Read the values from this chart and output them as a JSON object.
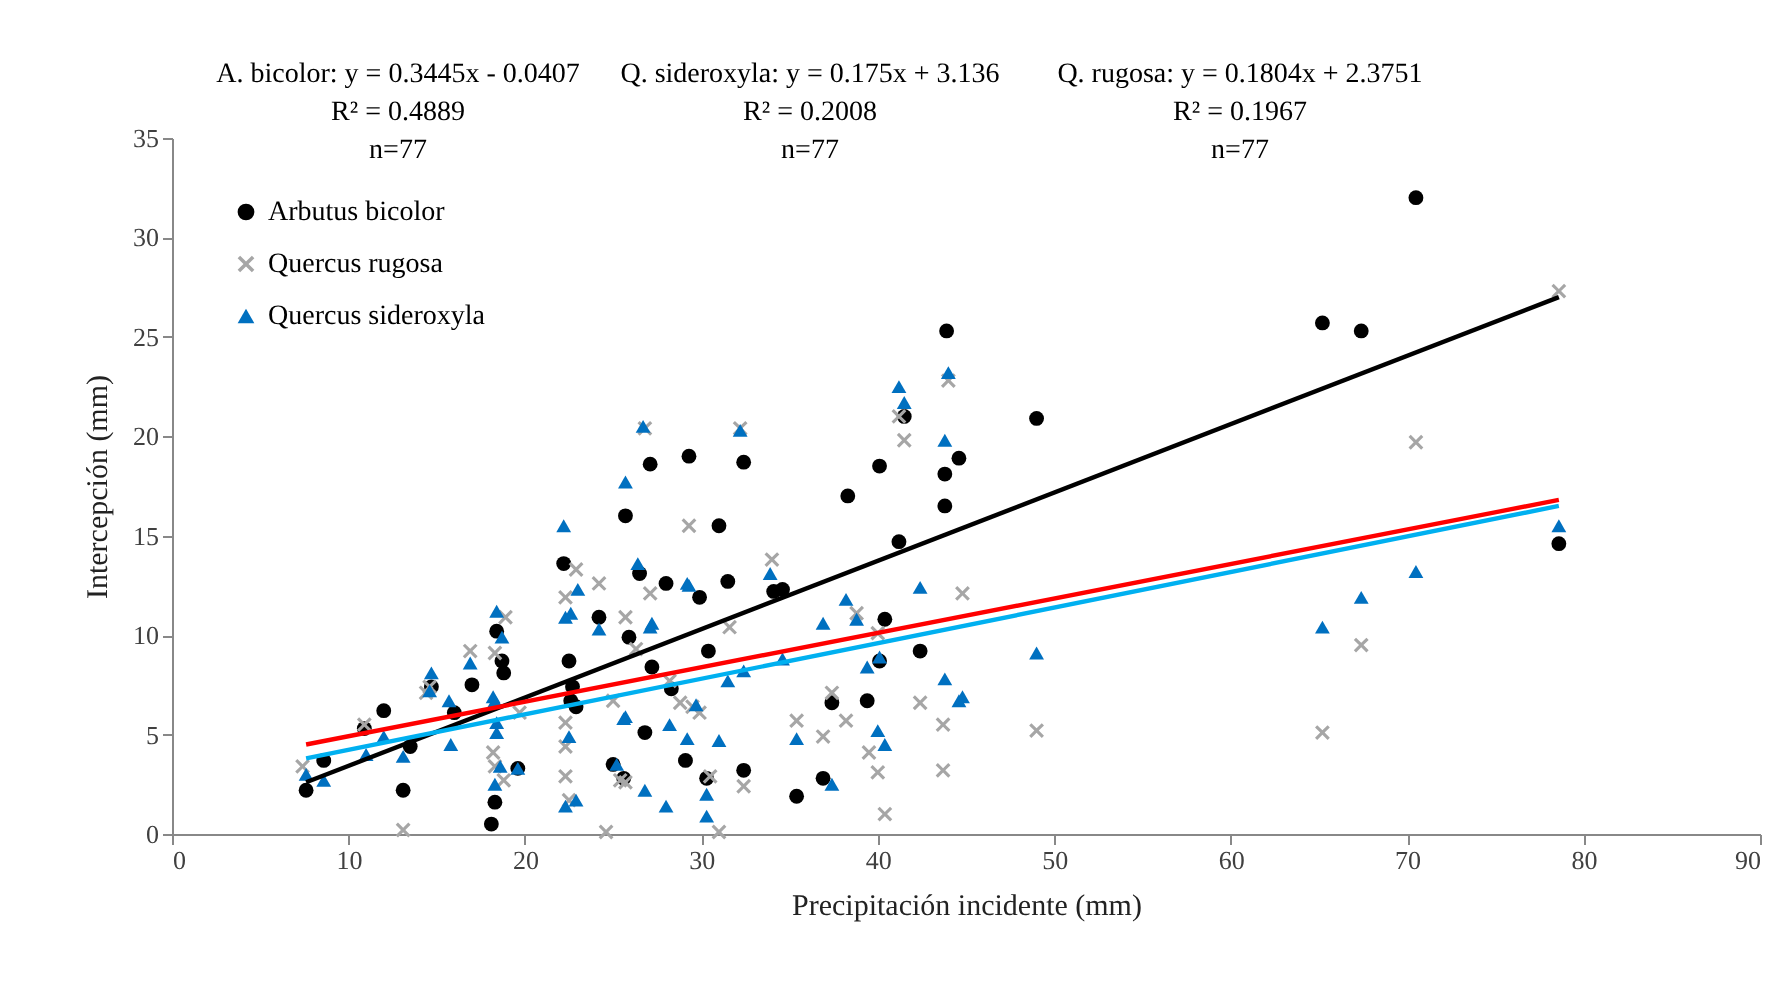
{
  "chart_data": {
    "type": "scatter",
    "xlabel": "Precipitación incidente (mm)",
    "ylabel": "Intercepción (mm)",
    "xlim": [
      0,
      90
    ],
    "xticks": [
      0,
      10,
      20,
      30,
      40,
      50,
      60,
      70,
      80,
      90
    ],
    "ylim": [
      0,
      35
    ],
    "yticks": [
      0,
      5,
      10,
      15,
      20,
      25,
      30,
      35
    ],
    "grid": false,
    "legend": "top left",
    "annotations": [
      "A. bicolor: y = 0.3445x - 0.0407",
      "R² = 0.4889",
      "n=77",
      "Q. sideroxyla: y = 0.175x + 3.136",
      "R² = 0.2008",
      "n=77",
      "Q. rugosa: y = 0.1804x + 2.3751",
      "R² = 0.1967",
      "n=77"
    ],
    "series": [
      {
        "name": "Arbutus bicolor",
        "color": "#000000",
        "marker": "circle",
        "x": [
          7.6,
          8.6,
          10.9,
          12.0,
          13.1,
          13.5,
          14.7,
          16.0,
          17.0,
          18.4,
          18.7,
          18.8,
          18.3,
          18.1,
          19.6,
          22.2,
          22.5,
          22.7,
          22.9,
          22.6,
          24.2,
          25.7,
          25.9,
          26.5,
          27.1,
          27.2,
          28.0,
          29.3,
          29.9,
          30.4,
          31.0,
          31.5,
          32.4,
          29.1,
          30.3,
          32.4,
          26.8,
          25.0,
          25.6,
          28.3,
          43.9,
          41.5,
          40.1,
          38.3,
          43.8,
          43.8,
          41.2,
          44.6,
          40.4,
          42.4,
          39.4,
          37.4,
          36.9,
          35.4,
          34.1,
          34.6,
          49.0,
          40.1,
          65.2,
          67.4,
          70.5,
          78.6
        ],
        "values": [
          2.2,
          3.7,
          5.3,
          6.2,
          2.2,
          4.4,
          7.4,
          6.1,
          7.5,
          10.2,
          8.7,
          8.1,
          1.6,
          0.5,
          3.3,
          13.6,
          8.7,
          7.4,
          6.4,
          6.7,
          10.9,
          16.0,
          9.9,
          13.1,
          18.6,
          8.4,
          12.6,
          19.0,
          11.9,
          9.2,
          15.5,
          12.7,
          18.7,
          3.7,
          2.8,
          3.2,
          5.1,
          3.5,
          2.8,
          7.3,
          25.3,
          21.0,
          18.5,
          17.0,
          18.1,
          16.5,
          14.7,
          18.9,
          10.8,
          9.2,
          6.7,
          6.6,
          2.8,
          1.9,
          12.2,
          12.3,
          20.9,
          8.7,
          25.7,
          25.3,
          32.0,
          14.6
        ]
      },
      {
        "name": "Quercus rugosa",
        "color": "#a6a6a6",
        "marker": "cross",
        "x": [
          7.4,
          10.9,
          13.1,
          14.4,
          14.6,
          16.9,
          18.3,
          18.9,
          18.2,
          18.3,
          18.8,
          19.7,
          22.3,
          22.3,
          22.3,
          22.3,
          22.9,
          24.2,
          25.7,
          27.1,
          29.3,
          31.6,
          25.0,
          26.3,
          28.8,
          29.5,
          25.4,
          22.5,
          24.6,
          31.0,
          32.4,
          30.5,
          41.2,
          41.5,
          44.0,
          34.0,
          32.2,
          26.8,
          38.8,
          37.4,
          38.2,
          40.0,
          39.5,
          40.0,
          40.4,
          36.9,
          35.4,
          42.4,
          43.7,
          43.7,
          28.2,
          29.9,
          25.7,
          44.8,
          49.0,
          65.2,
          67.4,
          70.5,
          78.6
        ],
        "values": [
          3.4,
          5.5,
          0.2,
          7.1,
          7.4,
          9.2,
          9.1,
          10.9,
          4.1,
          3.4,
          2.7,
          6.1,
          11.9,
          5.6,
          4.4,
          2.9,
          13.3,
          12.6,
          10.9,
          12.1,
          15.5,
          10.4,
          6.7,
          9.3,
          6.6,
          6.4,
          2.7,
          1.7,
          0.1,
          0.1,
          2.4,
          2.9,
          21.0,
          19.8,
          22.8,
          13.8,
          20.4,
          20.4,
          11.1,
          7.1,
          5.7,
          10.1,
          4.1,
          3.1,
          1.0,
          4.9,
          5.7,
          6.6,
          5.5,
          3.2,
          7.7,
          6.1,
          2.6,
          12.1,
          5.2,
          5.1,
          9.5,
          19.7,
          27.3
        ]
      },
      {
        "name": "Quercus sideroxyla",
        "color": "#0070c0",
        "marker": "triangle",
        "x": [
          7.6,
          8.6,
          11.0,
          12.0,
          13.1,
          14.7,
          14.6,
          15.7,
          15.8,
          16.9,
          18.4,
          18.7,
          18.3,
          18.4,
          18.6,
          18.3,
          19.6,
          22.2,
          22.3,
          22.3,
          18.2,
          18.4,
          22.6,
          23.0,
          24.2,
          22.5,
          22.9,
          25.7,
          26.4,
          26.7,
          27.1,
          25.2,
          25.7,
          26.8,
          28.0,
          28.2,
          29.2,
          29.2,
          30.3,
          30.3,
          31.0,
          31.5,
          32.2,
          32.4,
          27.2,
          29.3,
          33.9,
          34.6,
          35.4,
          36.9,
          38.2,
          38.8,
          39.4,
          40.1,
          40.0,
          40.4,
          37.4,
          42.4,
          43.8,
          44.0,
          41.2,
          41.5,
          43.8,
          44.6,
          29.7,
          25.6,
          49.0,
          44.8,
          65.2,
          67.4,
          70.5,
          78.6
        ],
        "values": [
          3.0,
          2.7,
          4.0,
          4.9,
          3.9,
          8.1,
          7.2,
          6.7,
          4.5,
          8.6,
          11.2,
          9.9,
          6.7,
          5.6,
          3.4,
          2.5,
          3.3,
          15.5,
          10.9,
          1.4,
          6.9,
          5.1,
          11.1,
          12.3,
          10.3,
          4.9,
          1.7,
          17.7,
          13.6,
          20.5,
          10.4,
          3.5,
          5.9,
          2.2,
          1.4,
          5.5,
          12.6,
          4.8,
          2.0,
          0.9,
          4.7,
          7.7,
          20.3,
          8.2,
          10.6,
          12.5,
          13.1,
          8.8,
          4.8,
          10.6,
          11.8,
          10.8,
          8.4,
          8.9,
          5.2,
          4.5,
          2.5,
          12.4,
          19.8,
          23.2,
          22.5,
          21.7,
          7.8,
          6.7,
          6.5,
          5.8,
          9.1,
          6.9,
          10.4,
          11.9,
          13.2,
          15.5
        ]
      },
      {
        "type": "line",
        "color": "#000000",
        "x": [
          7.6,
          78.6
        ],
        "values": [
          2.6,
          27.0
        ]
      },
      {
        "type": "line",
        "color": "#ff0000",
        "x": [
          7.6,
          78.6
        ],
        "values": [
          4.5,
          16.8
        ]
      },
      {
        "type": "line",
        "color": "#00b0f0",
        "x": [
          7.6,
          78.6
        ],
        "values": [
          3.8,
          16.5
        ]
      }
    ]
  }
}
